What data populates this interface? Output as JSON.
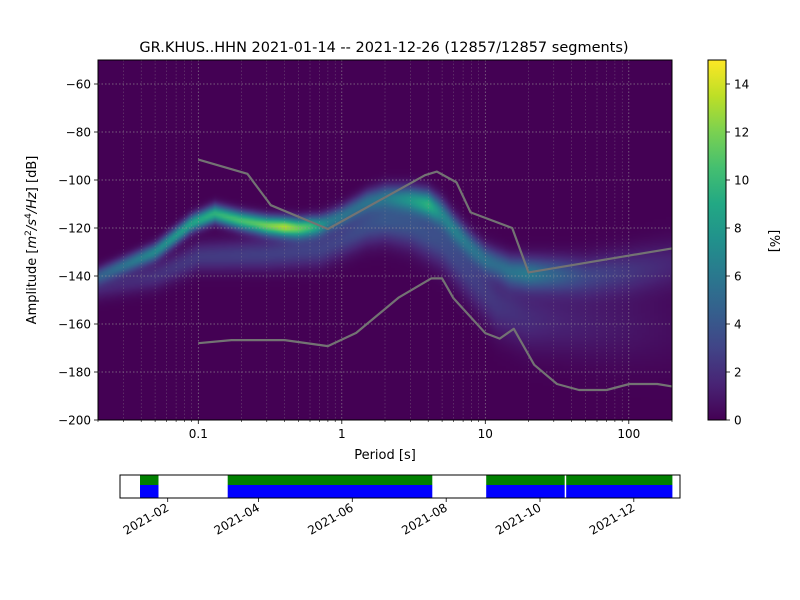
{
  "chart_data": [
    {
      "type": "heatmap",
      "title": "GR.KHUS..HHN   2021-01-14 -- 2021-12-26  (12857/12857 segments)",
      "xlabel": "Period [s]",
      "ylabel_prefix": "Amplitude [",
      "ylabel_math": {
        "m": "m",
        "m_exp": "2",
        "slash": "/",
        "s": "s",
        "s_exp": "4",
        "tail": "/Hz"
      },
      "ylabel_suffix": "] [dB]",
      "x_scale": "log",
      "xlim": [
        0.02,
        200
      ],
      "ylim": [
        -200,
        -50
      ],
      "x_ticks": [
        {
          "value": 0.1,
          "label": "0.1"
        },
        {
          "value": 1,
          "label": "1"
        },
        {
          "value": 10,
          "label": "10"
        },
        {
          "value": 100,
          "label": "100"
        }
      ],
      "y_ticks": [
        {
          "value": -60,
          "label": "−60"
        },
        {
          "value": -80,
          "label": "−80"
        },
        {
          "value": -100,
          "label": "−100"
        },
        {
          "value": -120,
          "label": "−120"
        },
        {
          "value": -140,
          "label": "−140"
        },
        {
          "value": -160,
          "label": "−160"
        },
        {
          "value": -180,
          "label": "−180"
        },
        {
          "value": -200,
          "label": "−200"
        }
      ],
      "grid": true,
      "colormap": "viridis",
      "colorbar": {
        "label": "[%]",
        "range": [
          0,
          15
        ],
        "ticks": [
          {
            "value": 0,
            "label": "0"
          },
          {
            "value": 2,
            "label": "2"
          },
          {
            "value": 4,
            "label": "4"
          },
          {
            "value": 6,
            "label": "6"
          },
          {
            "value": 8,
            "label": "8"
          },
          {
            "value": 10,
            "label": "10"
          },
          {
            "value": 12,
            "label": "12"
          },
          {
            "value": 14,
            "label": "14"
          }
        ]
      },
      "density_ridges": [
        {
          "upper_db": [
            [
              0.02,
              -140
            ],
            [
              0.05,
              -130
            ],
            [
              0.09,
              -118
            ],
            [
              0.13,
              -114
            ],
            [
              0.2,
              -117
            ],
            [
              0.3,
              -119
            ],
            [
              0.5,
              -120
            ],
            [
              0.7,
              -119
            ],
            [
              1,
              -115
            ],
            [
              1.5,
              -109
            ],
            [
              2,
              -107
            ],
            [
              3,
              -108
            ],
            [
              4,
              -110
            ],
            [
              5,
              -114
            ],
            [
              6,
              -120
            ],
            [
              8,
              -128
            ],
            [
              10,
              -133
            ],
            [
              15,
              -138
            ],
            [
              20,
              -139
            ],
            [
              50,
              -140
            ],
            [
              100,
              -138
            ],
            [
              200,
              -135
            ]
          ],
          "peak_pct": [
            [
              0.02,
              4
            ],
            [
              0.05,
              7
            ],
            [
              0.1,
              9
            ],
            [
              0.15,
              10
            ],
            [
              0.25,
              11
            ],
            [
              0.4,
              13
            ],
            [
              0.6,
              10
            ],
            [
              0.8,
              6
            ],
            [
              1.2,
              5
            ],
            [
              2,
              5
            ],
            [
              3,
              7
            ],
            [
              4,
              9
            ],
            [
              5,
              6
            ],
            [
              8,
              5
            ],
            [
              12,
              5
            ],
            [
              20,
              6
            ],
            [
              50,
              3
            ],
            [
              200,
              1.5
            ]
          ],
          "spread_db": [
            [
              0.02,
              2.5
            ],
            [
              0.1,
              2.5
            ],
            [
              1,
              3
            ],
            [
              5,
              4
            ],
            [
              10,
              4
            ],
            [
              30,
              5
            ],
            [
              200,
              7
            ]
          ]
        },
        {
          "upper_db": [
            [
              0.02,
              -145
            ],
            [
              0.05,
              -140
            ],
            [
              0.1,
              -132
            ],
            [
              0.3,
              -131
            ],
            [
              0.7,
              -129
            ],
            [
              1,
              -125
            ],
            [
              1.5,
              -119
            ],
            [
              2,
              -117
            ],
            [
              3,
              -119
            ],
            [
              5,
              -126
            ],
            [
              8,
              -140
            ],
            [
              12,
              -152
            ],
            [
              20,
              -158
            ],
            [
              50,
              -160
            ],
            [
              200,
              -162
            ]
          ],
          "peak_pct": [
            [
              0.02,
              1.5
            ],
            [
              0.1,
              2.5
            ],
            [
              1,
              3
            ],
            [
              2,
              4
            ],
            [
              5,
              3.5
            ],
            [
              10,
              2.5
            ],
            [
              30,
              1.5
            ],
            [
              200,
              0.5
            ]
          ],
          "spread_db": [
            [
              0.02,
              3.5
            ],
            [
              1,
              5
            ],
            [
              10,
              8
            ],
            [
              200,
              12
            ]
          ]
        }
      ],
      "series": [
        {
          "name_text": "",
          "color": "#737373",
          "points": [
            [
              0.1,
              -91.5
            ],
            [
              0.22,
              -97.4
            ],
            [
              0.32,
              -110.5
            ],
            [
              0.8,
              -120.4
            ],
            [
              3.8,
              -98.0
            ],
            [
              4.6,
              -96.5
            ],
            [
              6.3,
              -101.0
            ],
            [
              7.9,
              -113.5
            ],
            [
              15.4,
              -120.0
            ],
            [
              20,
              -138.5
            ],
            [
              200,
              -128.5
            ]
          ]
        },
        {
          "name_text": "",
          "color": "#737373",
          "points": [
            [
              0.1,
              -168.0
            ],
            [
              0.17,
              -166.7
            ],
            [
              0.4,
              -166.7
            ],
            [
              0.8,
              -169.2
            ],
            [
              1.26,
              -163.7
            ],
            [
              2.5,
              -148.9
            ],
            [
              4.2,
              -141.0
            ],
            [
              5.0,
              -141.0
            ],
            [
              6.0,
              -149.3
            ],
            [
              10,
              -163.8
            ],
            [
              12.6,
              -166.1
            ],
            [
              15.8,
              -162.0
            ],
            [
              21.9,
              -177.0
            ],
            [
              31.6,
              -185.0
            ],
            [
              45,
              -187.5
            ],
            [
              70,
              -187.5
            ],
            [
              101,
              -185.0
            ],
            [
              158,
              -185.0
            ],
            [
              200,
              -186.0
            ]
          ]
        }
      ]
    },
    {
      "type": "timeline",
      "x_range": [
        "2021-01-01",
        "2021-12-31"
      ],
      "x_ticks": [
        "2021-02",
        "2021-04",
        "2021-06",
        "2021-08",
        "2021-10",
        "2021-12"
      ],
      "segments": [
        [
          "2021-01-14",
          "2021-01-26"
        ],
        [
          "2021-03-12",
          "2021-07-23"
        ],
        [
          "2021-08-27",
          "2021-10-17"
        ],
        [
          "2021-10-18",
          "2021-12-26"
        ]
      ],
      "top_color": "#008000",
      "bottom_color": "#0000ff"
    }
  ]
}
